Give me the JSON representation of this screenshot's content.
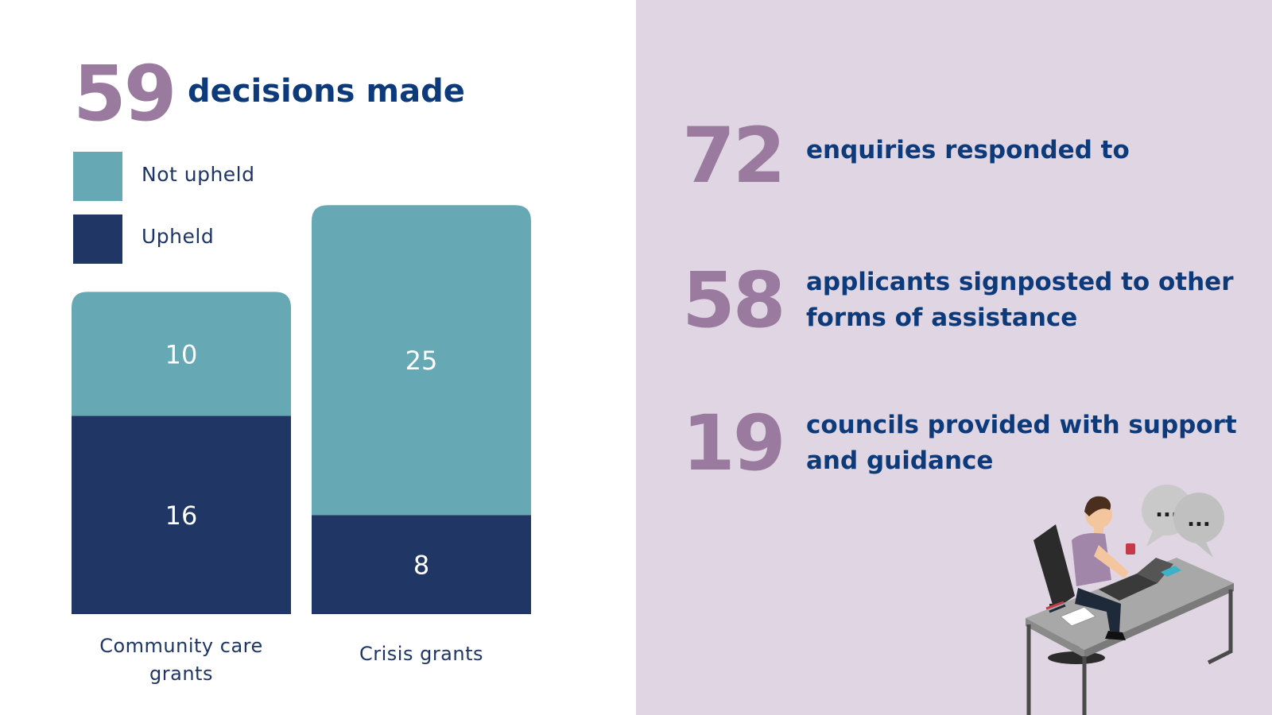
{
  "header": {
    "total": "59",
    "caption": "decisions made"
  },
  "legend": {
    "not_upheld": "Not upheld",
    "upheld": "Upheld"
  },
  "colors": {
    "not_upheld": "#66a9b4",
    "upheld": "#203664",
    "number_purple": "#9b7aa0",
    "headline_blue": "#0d3a7a",
    "right_bg": "#e0d5e2"
  },
  "chart_data": {
    "type": "bar",
    "stacked": true,
    "categories": [
      "Community care grants",
      "Crisis grants"
    ],
    "series": [
      {
        "name": "Upheld",
        "values": [
          16,
          8
        ]
      },
      {
        "name": "Not upheld",
        "values": [
          10,
          25
        ]
      }
    ],
    "grid": false,
    "legend_position": "top-left"
  },
  "stats": [
    {
      "number": "72",
      "text": "enquiries responded to"
    },
    {
      "number": "58",
      "text": "applicants signposted to other forms of assistance"
    },
    {
      "number": "19",
      "text": "councils provided with support and guidance"
    }
  ],
  "illustration": {
    "icon": "person-at-desk-illustration",
    "bubble_1": "...",
    "bubble_2": "..."
  }
}
